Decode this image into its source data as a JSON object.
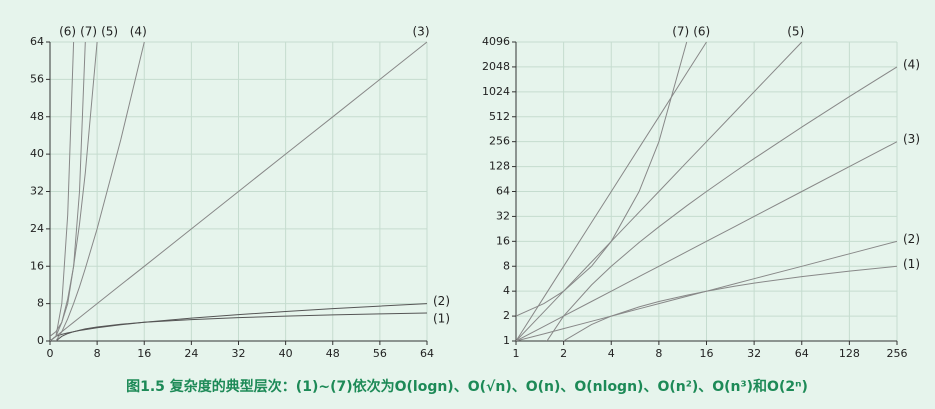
{
  "caption": "图1.5 复杂度的典型层次：(1)~(7)依次为O(logn)、O(√n)、O(n)、O(nlogn)、O(n²)、O(n³)和O(2ⁿ)",
  "chart_data": [
    {
      "type": "line",
      "log": false,
      "grid": true,
      "x": [
        0,
        1,
        2,
        3,
        4,
        5,
        6,
        8,
        12,
        16,
        24,
        32,
        40,
        48,
        56,
        64
      ],
      "xlim": [
        0,
        64
      ],
      "ylim": [
        0,
        64
      ],
      "xticks": [
        0,
        8,
        16,
        24,
        32,
        40,
        48,
        56,
        64
      ],
      "yticks": [
        0,
        8,
        16,
        24,
        32,
        40,
        48,
        56,
        64
      ],
      "series": [
        {
          "name": "(1)",
          "color": "#555555",
          "values": [
            null,
            0,
            1,
            1.58,
            2,
            2.32,
            2.58,
            3,
            3.58,
            4,
            4.58,
            5,
            5.32,
            5.58,
            5.81,
            6
          ]
        },
        {
          "name": "(2)",
          "color": "#555555",
          "values": [
            0,
            1,
            1.41,
            1.73,
            2,
            2.24,
            2.45,
            2.83,
            3.46,
            4,
            4.9,
            5.66,
            6.32,
            6.93,
            7.48,
            8
          ]
        },
        {
          "name": "(3)",
          "color": "#888888",
          "values": [
            0,
            1,
            2,
            3,
            4,
            5,
            6,
            8,
            12,
            16,
            24,
            32,
            40,
            48,
            56,
            64
          ]
        },
        {
          "name": "(4)",
          "color": "#888888",
          "values": [
            null,
            0,
            2,
            4.75,
            8,
            11.61,
            15.51,
            24,
            43.02,
            64,
            null,
            null,
            null,
            null,
            null,
            null
          ]
        },
        {
          "name": "(5)",
          "color": "#888888",
          "values": [
            0,
            1,
            4,
            9,
            16,
            25,
            36,
            64,
            null,
            null,
            null,
            null,
            null,
            null,
            null,
            null
          ]
        },
        {
          "name": "(6)",
          "color": "#888888",
          "values": [
            0,
            1,
            8,
            27,
            64,
            null,
            null,
            null,
            null,
            null,
            null,
            null,
            null,
            null,
            null,
            null
          ]
        },
        {
          "name": "(7)",
          "color": "#888888",
          "values": [
            1,
            2,
            4,
            8,
            16,
            32,
            64,
            null,
            null,
            null,
            null,
            null,
            null,
            null,
            null,
            null
          ]
        }
      ]
    },
    {
      "type": "line",
      "log": true,
      "grid": true,
      "x": [
        1,
        1.5,
        2,
        3,
        4,
        6,
        8,
        12,
        16,
        24,
        32,
        64,
        128,
        256
      ],
      "xlim": [
        1,
        256
      ],
      "ylim": [
        1,
        4096
      ],
      "xticks": [
        1,
        2,
        4,
        8,
        16,
        32,
        64,
        128,
        256
      ],
      "yticks": [
        1,
        2,
        4,
        8,
        16,
        32,
        64,
        128,
        256,
        512,
        1024,
        2048,
        4096
      ],
      "series": [
        {
          "name": "(1)",
          "color": "#888888",
          "values": [
            null,
            0.58,
            1,
            1.58,
            2,
            2.58,
            3,
            3.58,
            4,
            4.58,
            5,
            6,
            7,
            8
          ]
        },
        {
          "name": "(2)",
          "color": "#888888",
          "values": [
            1,
            1.22,
            1.41,
            1.73,
            2,
            2.45,
            2.83,
            3.46,
            4,
            4.9,
            5.66,
            8,
            11.31,
            16
          ]
        },
        {
          "name": "(3)",
          "color": "#888888",
          "values": [
            1,
            1.5,
            2,
            3,
            4,
            6,
            8,
            12,
            16,
            24,
            32,
            64,
            128,
            256
          ]
        },
        {
          "name": "(4)",
          "color": "#888888",
          "values": [
            null,
            0.88,
            2,
            4.75,
            8,
            15.51,
            24,
            43.02,
            64,
            110.04,
            160,
            384,
            896,
            2048
          ]
        },
        {
          "name": "(5)",
          "color": "#888888",
          "values": [
            1,
            2.25,
            4,
            9,
            16,
            36,
            64,
            144,
            256,
            576,
            1024,
            4096,
            null,
            null
          ]
        },
        {
          "name": "(6)",
          "color": "#888888",
          "values": [
            1,
            3.38,
            8,
            27,
            64,
            216,
            512,
            1728,
            4096,
            null,
            null,
            null,
            null,
            null
          ]
        },
        {
          "name": "(7)",
          "color": "#888888",
          "values": [
            2,
            2.83,
            4,
            8,
            16,
            64,
            256,
            4096,
            null,
            null,
            null,
            null,
            null,
            null
          ]
        }
      ]
    }
  ]
}
